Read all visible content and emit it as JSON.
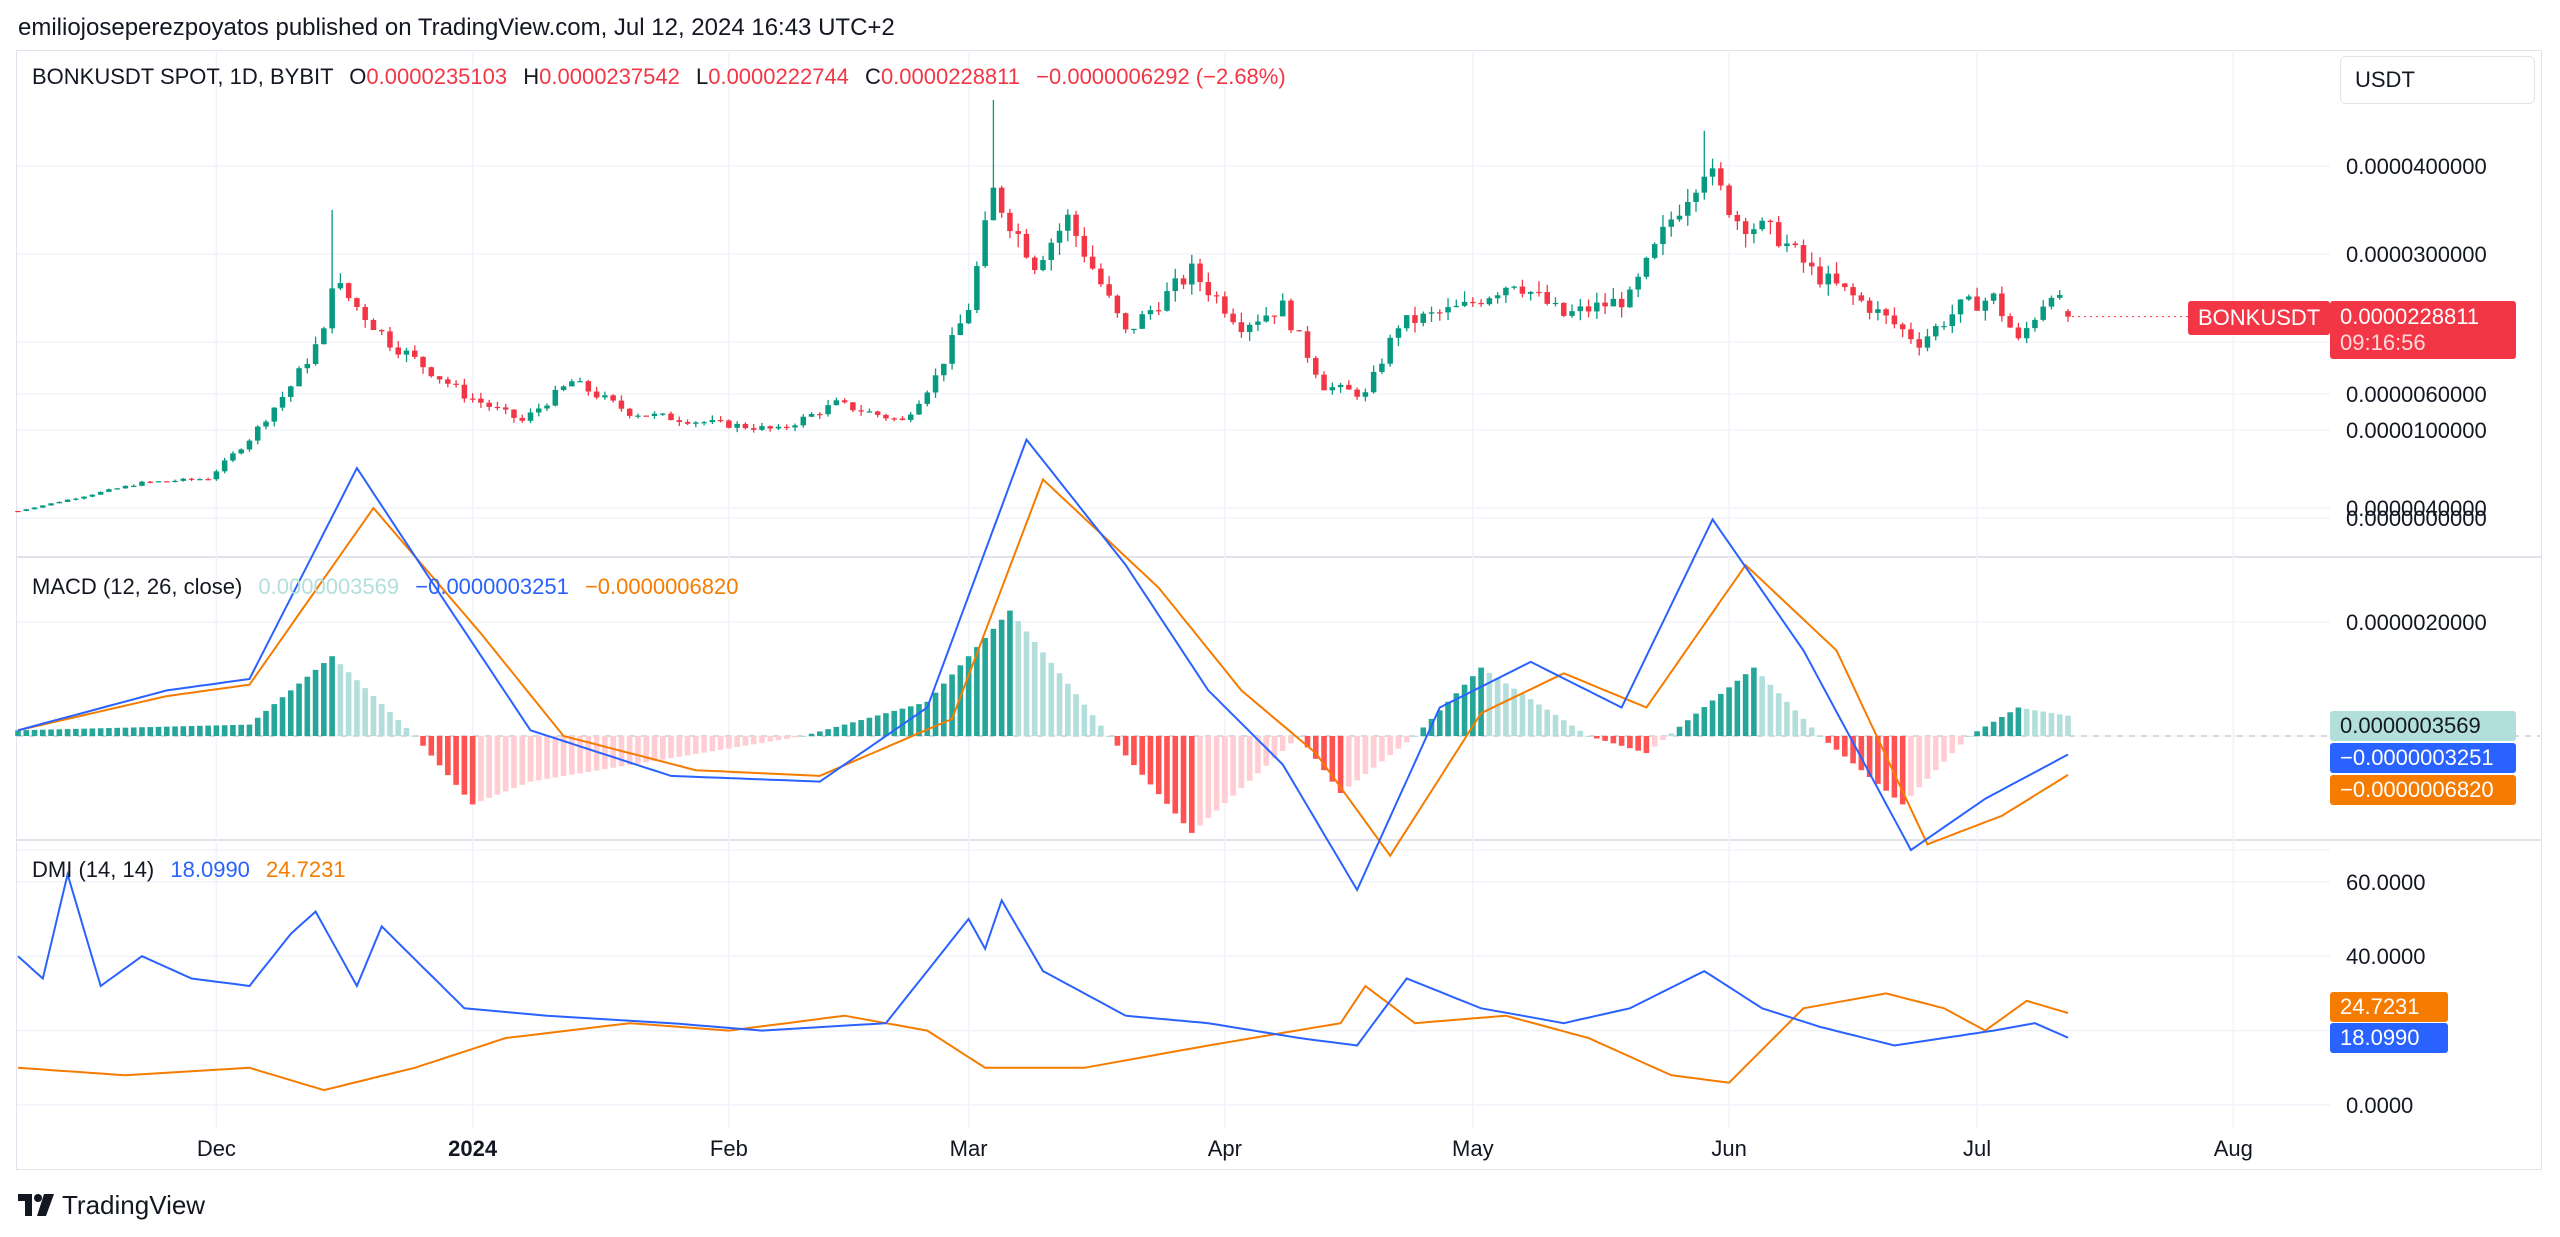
{
  "publisher_line": "emiliojoseperezpoyatos published on TradingView.com, Jul 12, 2024 16:43 UTC+2",
  "brand": "TradingView",
  "currency_selector": "USDT",
  "colors": {
    "up": "#089981",
    "down": "#f23645",
    "macd_line": "#2962ff",
    "signal_line": "#f57c00",
    "hist_pos_strong": "#26a69a",
    "hist_pos_weak": "#b2dfdb",
    "hist_neg_strong": "#ff5252",
    "hist_neg_weak": "#ffcdd2",
    "dmi_plus": "#2962ff",
    "dmi_minus": "#f57c00"
  },
  "main_legend": {
    "symbol": "BONKUSDT SPOT, 1D, BYBIT",
    "o_label": "O",
    "o_value": "0.0000235103",
    "h_label": "H",
    "h_value": "0.0000237542",
    "l_label": "L",
    "l_value": "0.0000222744",
    "c_label": "C",
    "c_value": "0.0000228811",
    "change": "−0.0000006292 (−2.68%)"
  },
  "price_axis": {
    "ticks": [
      "0.0000400000",
      "0.0000300000",
      "0.0000100000",
      "0.0000000000"
    ],
    "symbol_tag": "BONKUSDT",
    "last_price": "0.0000228811",
    "countdown": "09:16:56"
  },
  "macd": {
    "title": "MACD (12, 26, close)",
    "hist_value": "0.0000003569",
    "macd_value": "−0.0000003251",
    "signal_value": "−0.0000006820",
    "ticks": [
      "0.0000060000",
      "0.0000040000",
      "0.0000020000"
    ]
  },
  "dmi": {
    "title": "DMI (14, 14)",
    "plus_value": "18.0990",
    "minus_value": "24.7231",
    "ticks": [
      "60.0000",
      "40.0000",
      "0.0000"
    ]
  },
  "time_axis": [
    "Dec",
    "2024",
    "Feb",
    "Mar",
    "Apr",
    "May",
    "Jun",
    "Jul",
    "Aug"
  ],
  "chart_data": [
    {
      "type": "candlestick",
      "title": "BONKUSDT SPOT, 1D, BYBIT",
      "y_unit": "USDT",
      "ylim": [
        -1e-06,
        4.9e-05
      ],
      "anchors_x_date_y_close": [
        [
          "2023-11-07",
          8e-07
        ],
        [
          "2023-11-15",
          2.5e-06
        ],
        [
          "2023-11-22",
          4e-06
        ],
        [
          "2023-11-30",
          4.5e-06
        ],
        [
          "2023-12-05",
          9e-06
        ],
        [
          "2023-12-10",
          1.5e-05
        ],
        [
          "2023-12-14",
          2.1e-05
        ],
        [
          "2023-12-15",
          2.7e-05
        ],
        [
          "2023-12-22",
          2e-05
        ],
        [
          "2023-12-31",
          1.4e-05
        ],
        [
          "2024-01-07",
          1.1e-05
        ],
        [
          "2024-01-13",
          1.55e-05
        ],
        [
          "2024-01-20",
          1.2e-05
        ],
        [
          "2024-01-28",
          1.1e-05
        ],
        [
          "2024-02-07",
          1e-05
        ],
        [
          "2024-02-14",
          1.3e-05
        ],
        [
          "2024-02-22",
          1.1e-05
        ],
        [
          "2024-02-26",
          1.6e-05
        ],
        [
          "2024-03-01",
          2.4e-05
        ],
        [
          "2024-03-04",
          3.7e-05
        ],
        [
          "2024-03-09",
          2.9e-05
        ],
        [
          "2024-03-13",
          3.4e-05
        ],
        [
          "2024-03-20",
          2.1e-05
        ],
        [
          "2024-03-28",
          2.8e-05
        ],
        [
          "2024-04-03",
          2.2e-05
        ],
        [
          "2024-04-08",
          2.4e-05
        ],
        [
          "2024-04-13",
          1.5e-05
        ],
        [
          "2024-04-18",
          1.4e-05
        ],
        [
          "2024-04-22",
          2.2e-05
        ],
        [
          "2024-04-30",
          2.4e-05
        ],
        [
          "2024-05-06",
          2.7e-05
        ],
        [
          "2024-05-12",
          2.3e-05
        ],
        [
          "2024-05-20",
          2.5e-05
        ],
        [
          "2024-05-25",
          3.4e-05
        ],
        [
          "2024-05-29",
          4e-05
        ],
        [
          "2024-06-02",
          3.4e-05
        ],
        [
          "2024-06-07",
          3.2e-05
        ],
        [
          "2024-06-11",
          2.8e-05
        ],
        [
          "2024-06-18",
          2.4e-05
        ],
        [
          "2024-06-24",
          2e-05
        ],
        [
          "2024-06-29",
          2.4e-05
        ],
        [
          "2024-07-03",
          2.5e-05
        ],
        [
          "2024-07-06",
          2e-05
        ],
        [
          "2024-07-10",
          2.6e-05
        ],
        [
          "2024-07-12",
          2.28811e-05
        ]
      ],
      "last": {
        "open": 2.35103e-05,
        "high": 2.37542e-05,
        "low": 2.22744e-05,
        "close": 2.28811e-05
      }
    },
    {
      "type": "line",
      "title": "MACD (12, 26, close)",
      "ylim": [
        -3.5e-06,
        6e-06
      ],
      "series": [
        {
          "name": "MACD",
          "points": [
            [
              "2023-11-07",
              1e-07
            ],
            [
              "2023-11-25",
              8e-07
            ],
            [
              "2023-12-05",
              1e-06
            ],
            [
              "2023-12-18",
              4.7e-06
            ],
            [
              "2023-12-28",
              2.5e-06
            ],
            [
              "2024-01-08",
              1e-07
            ],
            [
              "2024-01-25",
              -7e-07
            ],
            [
              "2024-02-12",
              -8e-07
            ],
            [
              "2024-02-25",
              5e-07
            ],
            [
              "2024-03-08",
              5.2e-06
            ],
            [
              "2024-03-20",
              3e-06
            ],
            [
              "2024-03-30",
              8e-07
            ],
            [
              "2024-04-08",
              -5e-07
            ],
            [
              "2024-04-17",
              -2.7e-06
            ],
            [
              "2024-04-27",
              5e-07
            ],
            [
              "2024-05-08",
              1.3e-06
            ],
            [
              "2024-05-19",
              5e-07
            ],
            [
              "2024-05-30",
              3.8e-06
            ],
            [
              "2024-06-10",
              1.5e-06
            ],
            [
              "2024-06-23",
              -2e-06
            ],
            [
              "2024-07-02",
              -1.1e-06
            ],
            [
              "2024-07-12",
              -3.251e-07
            ]
          ]
        },
        {
          "name": "Signal",
          "points": [
            [
              "2023-11-07",
              1e-07
            ],
            [
              "2023-11-25",
              7e-07
            ],
            [
              "2023-12-05",
              9e-07
            ],
            [
              "2023-12-20",
              4e-06
            ],
            [
              "2024-01-02",
              1.8e-06
            ],
            [
              "2024-01-12",
              0.0
            ],
            [
              "2024-01-28",
              -6e-07
            ],
            [
              "2024-02-12",
              -7e-07
            ],
            [
              "2024-02-28",
              3e-07
            ],
            [
              "2024-03-10",
              4.5e-06
            ],
            [
              "2024-03-24",
              2.6e-06
            ],
            [
              "2024-04-03",
              8e-07
            ],
            [
              "2024-04-12",
              -3e-07
            ],
            [
              "2024-04-21",
              -2.1e-06
            ],
            [
              "2024-05-02",
              4e-07
            ],
            [
              "2024-05-12",
              1.1e-06
            ],
            [
              "2024-05-22",
              5e-07
            ],
            [
              "2024-06-03",
              3e-06
            ],
            [
              "2024-06-14",
              1.5e-06
            ],
            [
              "2024-06-25",
              -1.9e-06
            ],
            [
              "2024-07-04",
              -1.4e-06
            ],
            [
              "2024-07-12",
              -6.82e-07
            ]
          ]
        },
        {
          "name": "Histogram",
          "points": [
            [
              "2023-11-07",
              1e-07
            ],
            [
              "2023-12-05",
              2e-07
            ],
            [
              "2023-12-15",
              1.4e-06
            ],
            [
              "2023-12-25",
              0.0
            ],
            [
              "2024-01-01",
              -1.2e-06
            ],
            [
              "2024-01-08",
              -8e-07
            ],
            [
              "2024-02-10",
              0.0
            ],
            [
              "2024-02-25",
              6e-07
            ],
            [
              "2024-03-06",
              2.2e-06
            ],
            [
              "2024-03-18",
              0.0
            ],
            [
              "2024-03-28",
              -1.7e-06
            ],
            [
              "2024-04-10",
              0.0
            ],
            [
              "2024-04-15",
              -1e-06
            ],
            [
              "2024-04-24",
              0.0
            ],
            [
              "2024-05-02",
              1.2e-06
            ],
            [
              "2024-05-15",
              0.0
            ],
            [
              "2024-05-22",
              -3e-07
            ],
            [
              "2024-06-04",
              1.2e-06
            ],
            [
              "2024-06-12",
              0.0
            ],
            [
              "2024-06-22",
              -1.2e-06
            ],
            [
              "2024-06-30",
              0.0
            ],
            [
              "2024-07-06",
              5e-07
            ],
            [
              "2024-07-12",
              3.569e-07
            ]
          ]
        }
      ]
    },
    {
      "type": "line",
      "title": "DMI (14, 14)",
      "ylim": [
        -3,
        66
      ],
      "series": [
        {
          "name": "+DI",
          "points": [
            [
              "2023-11-07",
              40
            ],
            [
              "2023-11-10",
              34
            ],
            [
              "2023-11-13",
              62
            ],
            [
              "2023-11-17",
              32
            ],
            [
              "2023-11-22",
              40
            ],
            [
              "2023-11-28",
              34
            ],
            [
              "2023-12-05",
              32
            ],
            [
              "2023-12-10",
              46
            ],
            [
              "2023-12-13",
              52
            ],
            [
              "2023-12-18",
              32
            ],
            [
              "2023-12-21",
              48
            ],
            [
              "2023-12-31",
              26
            ],
            [
              "2024-01-10",
              24
            ],
            [
              "2024-01-25",
              22
            ],
            [
              "2024-02-05",
              20
            ],
            [
              "2024-02-20",
              22
            ],
            [
              "2024-03-01",
              50
            ],
            [
              "2024-03-03",
              42
            ],
            [
              "2024-03-05",
              55
            ],
            [
              "2024-03-10",
              36
            ],
            [
              "2024-03-20",
              24
            ],
            [
              "2024-03-30",
              22
            ],
            [
              "2024-04-10",
              18
            ],
            [
              "2024-04-17",
              16
            ],
            [
              "2024-04-23",
              34
            ],
            [
              "2024-05-02",
              26
            ],
            [
              "2024-05-12",
              22
            ],
            [
              "2024-05-20",
              26
            ],
            [
              "2024-05-29",
              36
            ],
            [
              "2024-06-05",
              26
            ],
            [
              "2024-06-12",
              21
            ],
            [
              "2024-06-21",
              16
            ],
            [
              "2024-06-27",
              18
            ],
            [
              "2024-07-03",
              20
            ],
            [
              "2024-07-08",
              22
            ],
            [
              "2024-07-12",
              18.099
            ]
          ]
        },
        {
          "name": "-DI",
          "points": [
            [
              "2023-11-07",
              10
            ],
            [
              "2023-11-20",
              8
            ],
            [
              "2023-12-05",
              10
            ],
            [
              "2023-12-14",
              4
            ],
            [
              "2023-12-25",
              10
            ],
            [
              "2024-01-05",
              18
            ],
            [
              "2024-01-20",
              22
            ],
            [
              "2024-02-01",
              20
            ],
            [
              "2024-02-15",
              24
            ],
            [
              "2024-02-25",
              20
            ],
            [
              "2024-03-03",
              10
            ],
            [
              "2024-03-15",
              10
            ],
            [
              "2024-03-30",
              16
            ],
            [
              "2024-04-15",
              22
            ],
            [
              "2024-04-18",
              32
            ],
            [
              "2024-04-24",
              22
            ],
            [
              "2024-05-05",
              24
            ],
            [
              "2024-05-15",
              18
            ],
            [
              "2024-05-25",
              8
            ],
            [
              "2024-06-01",
              6
            ],
            [
              "2024-06-10",
              26
            ],
            [
              "2024-06-20",
              30
            ],
            [
              "2024-06-27",
              26
            ],
            [
              "2024-07-02",
              20
            ],
            [
              "2024-07-07",
              28
            ],
            [
              "2024-07-12",
              24.7231
            ]
          ]
        }
      ]
    }
  ]
}
